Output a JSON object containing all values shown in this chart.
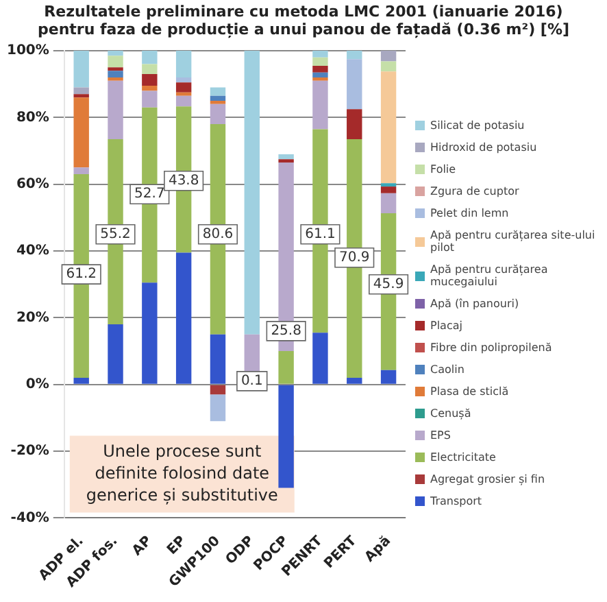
{
  "chart_data": {
    "type": "bar",
    "stacked": true,
    "title": "Rezultatele preliminare cu metoda LMC 2001 (ianuarie 2016)",
    "subtitle": "pentru faza de producție a unui panou de fațadă  (0.36 m²) [%]",
    "categories": [
      "ADP el.",
      "ADP fos.",
      "AP",
      "EP",
      "GWP100",
      "ODP",
      "POCP",
      "PENRT",
      "PERT",
      "Apă"
    ],
    "series": [
      {
        "name": "Transport",
        "color": "#3355cc",
        "values": [
          2,
          18,
          30.5,
          39.5,
          15,
          null,
          -31,
          15.5,
          2,
          4.3
        ]
      },
      {
        "name": "Agregat grosier și fin",
        "color": "#a83a3a",
        "values": [
          null,
          null,
          null,
          null,
          -3,
          null,
          null,
          null,
          null,
          null
        ]
      },
      {
        "name": "Electricitate",
        "color": "#9bbb59",
        "values": [
          61,
          55.5,
          52.5,
          43.8,
          63,
          null,
          10,
          61,
          71.5,
          47
        ]
      },
      {
        "name": "EPS",
        "color": "#b8a9cc",
        "values": [
          2,
          17.5,
          5,
          3.2,
          6,
          15,
          56.5,
          14.5,
          null,
          6
        ]
      },
      {
        "name": "Cenușă",
        "color": "#2e9c8e",
        "values": [
          null,
          null,
          null,
          null,
          null,
          null,
          null,
          null,
          null,
          null
        ]
      },
      {
        "name": "Plasa de sticlă",
        "color": "#e07b39",
        "values": [
          21,
          1,
          1.5,
          1,
          1,
          null,
          null,
          1,
          null,
          null
        ]
      },
      {
        "name": "Caolin",
        "color": "#4f81bd",
        "values": [
          null,
          2,
          null,
          null,
          1.5,
          null,
          null,
          1.5,
          null,
          null
        ]
      },
      {
        "name": "Fibre din polipropilenă",
        "color": "#c0504d",
        "values": [
          null,
          null,
          null,
          null,
          null,
          null,
          null,
          null,
          null,
          null
        ]
      },
      {
        "name": "Placaj",
        "color": "#a52a2a",
        "values": [
          1,
          1,
          3.5,
          3,
          null,
          null,
          1,
          2,
          9,
          2
        ]
      },
      {
        "name": "Apă (în panouri)",
        "color": "#7e62a8",
        "values": [
          null,
          null,
          null,
          null,
          null,
          null,
          null,
          null,
          null,
          null
        ]
      },
      {
        "name": "Apă pentru curățarea mucegaiului",
        "color": "#3aa8b8",
        "values": [
          null,
          null,
          null,
          null,
          null,
          null,
          null,
          null,
          null,
          1
        ]
      },
      {
        "name": "Apă pentru curățarea site-ului pilot",
        "color": "#f5c998",
        "values": [
          null,
          null,
          null,
          null,
          null,
          null,
          null,
          null,
          null,
          33.5
        ]
      },
      {
        "name": "Pelet din lemn",
        "color": "#a9bde0",
        "values": [
          null,
          null,
          null,
          1.5,
          -8,
          null,
          null,
          null,
          15,
          null
        ]
      },
      {
        "name": "Zgura de cuptor",
        "color": "#d9a3a0",
        "values": [
          null,
          null,
          null,
          null,
          null,
          null,
          null,
          null,
          null,
          null
        ]
      },
      {
        "name": "Folie",
        "color": "#c5dfa8",
        "values": [
          null,
          3.5,
          3,
          null,
          null,
          null,
          null,
          2.5,
          null,
          3
        ]
      },
      {
        "name": "Hidroxid de potasiu",
        "color": "#a8a8c0",
        "values": [
          2,
          null,
          null,
          null,
          null,
          null,
          null,
          null,
          null,
          3.2
        ]
      },
      {
        "name": "Silicat de potasiu",
        "color": "#9fd0e0",
        "values": [
          11,
          1.5,
          4,
          8,
          2.5,
          85,
          1.5,
          2,
          2.5,
          null
        ]
      }
    ],
    "ylim": [
      -40,
      100
    ],
    "yticks": [
      {
        "value": -40,
        "label": "-40%"
      },
      {
        "value": -20,
        "label": "-20%"
      },
      {
        "value": 0,
        "label": "0%"
      },
      {
        "value": 20,
        "label": "20%"
      },
      {
        "value": 40,
        "label": "40%"
      },
      {
        "value": 60,
        "label": "60%"
      },
      {
        "value": 80,
        "label": "80%"
      },
      {
        "value": 100,
        "label": "100%"
      }
    ],
    "grid": "y",
    "legend": "right",
    "annotations": [
      "Unele procese sunt definite folosind date generice și substitutive",
      {
        "text": "61.2",
        "x": "ADP el.",
        "y": 33
      },
      {
        "text": "55.2",
        "x": "ADP fos.",
        "y": 45
      },
      {
        "text": "52.7",
        "x": "AP",
        "y": 57
      },
      {
        "text": "43.8",
        "x": "EP",
        "y": 61
      },
      {
        "text": "80.6",
        "x": "GWP100",
        "y": 45
      },
      {
        "text": "0.1",
        "x": "ODP",
        "y": 1
      },
      {
        "text": "25.8",
        "x": "POCP",
        "y": 16
      },
      {
        "text": "61.1",
        "x": "PENRT",
        "y": 45
      },
      {
        "text": "70.9",
        "x": "PERT",
        "y": 38
      },
      {
        "text": "45.9",
        "x": "Apă",
        "y": 30
      }
    ]
  }
}
